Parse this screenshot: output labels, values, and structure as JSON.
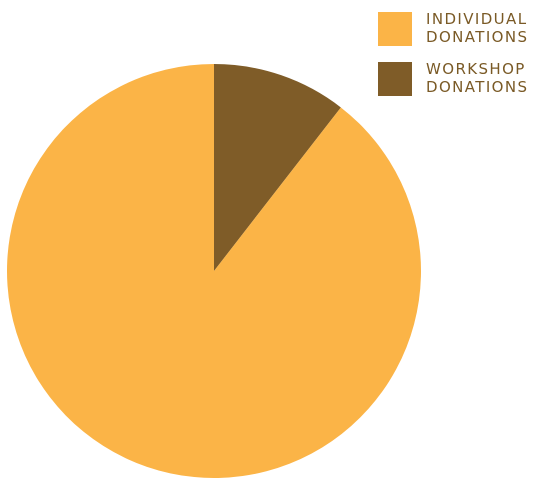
{
  "chart_data": {
    "type": "pie",
    "title": "",
    "slices": [
      {
        "label": "INDIVIDUAL\nDONATIONS",
        "value": 89.5,
        "color": "#fbb447"
      },
      {
        "label": "WORKSHOP\nDONATIONS",
        "value": 10.5,
        "color": "#7f5c28"
      }
    ],
    "legend": {
      "placement": "top-right",
      "items": [
        {
          "label": "INDIVIDUAL\nDONATIONS",
          "color": "#fbb447"
        },
        {
          "label": "WORKSHOP\nDONATIONS",
          "color": "#7f5c28"
        }
      ]
    }
  }
}
